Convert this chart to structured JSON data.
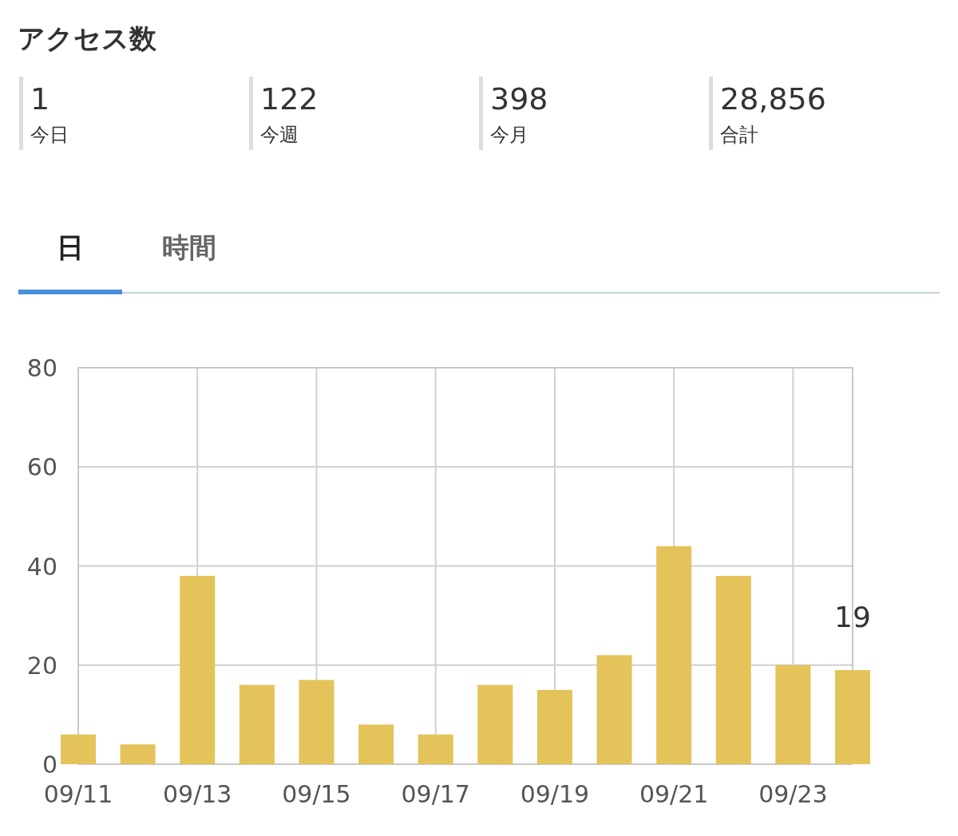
{
  "chart_data": [
    {
      "type": "other",
      "title": "アクセス数",
      "annotations": [
        "1",
        "今日",
        "122",
        "今週",
        "398",
        "今月",
        "28,856",
        "合計",
        "日",
        "時間"
      ]
    },
    {
      "type": "bar",
      "x": [
        "--09-11",
        "--09-12",
        "--09-13",
        "--09-14",
        "--09-15",
        "--09-16",
        "--09-17",
        "--09-18",
        "--09-19",
        "--09-20",
        "--09-21",
        "--09-22",
        "--09-23",
        "--09-24"
      ],
      "series": [
        {
          "color": "#e4c35a",
          "values": [
            6,
            4,
            38,
            16,
            17,
            8,
            6,
            16,
            15,
            22,
            44,
            38,
            20,
            19
          ],
          "value_labels": [
            null,
            null,
            null,
            null,
            null,
            null,
            null,
            null,
            null,
            null,
            null,
            null,
            null,
            "19"
          ]
        }
      ],
      "xlim": [
        "--09-11",
        "--09-24"
      ],
      "xticks": [
        {
          "value": "--09-11",
          "label": "09/11"
        },
        {
          "value": "--09-13",
          "label": "09/13"
        },
        {
          "value": "--09-15",
          "label": "09/15"
        },
        {
          "value": "--09-17",
          "label": "09/17"
        },
        {
          "value": "--09-19",
          "label": "09/19"
        },
        {
          "value": "--09-21",
          "label": "09/21"
        },
        {
          "value": "--09-23",
          "label": "09/23"
        }
      ],
      "ylim": [
        0,
        80
      ],
      "yticks": [
        0,
        20,
        40,
        60,
        80
      ],
      "grid": true
    }
  ]
}
